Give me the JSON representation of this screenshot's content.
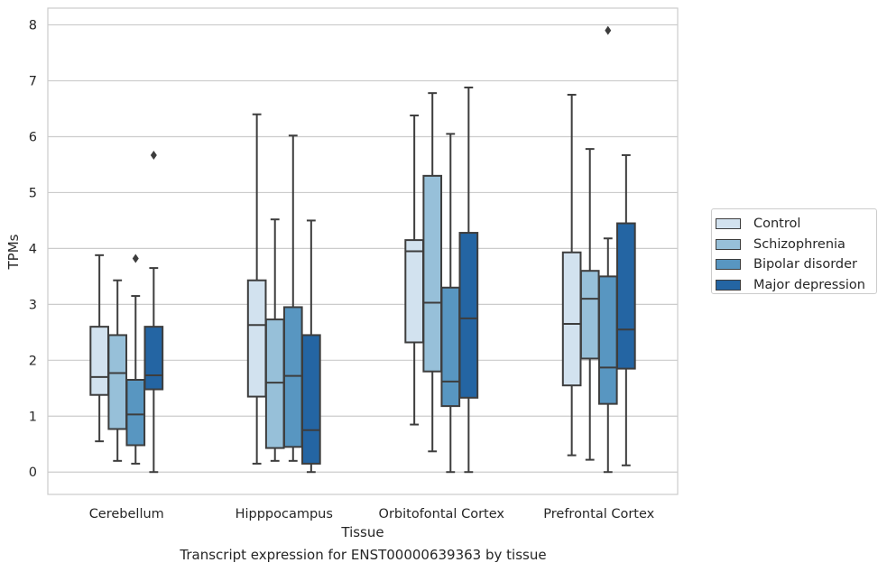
{
  "chart_data": {
    "type": "boxplot",
    "caption": "Transcript expression for ENST00000639363 by tissue",
    "xlabel": "Tissue",
    "ylabel": "TPMs",
    "ylim": [
      -0.4,
      8.3
    ],
    "yticks": [
      0,
      1,
      2,
      3,
      4,
      5,
      6,
      7,
      8
    ],
    "grid": "horizontal",
    "legend_position": "right",
    "categories": [
      "Cerebellum",
      "Hipppocampus",
      "Orbitofontal Cortex",
      "Prefrontal Cortex"
    ],
    "series": [
      {
        "name": "Control",
        "color": "#d2e2ef",
        "boxes": [
          {
            "whislo": 0.55,
            "q1": 1.38,
            "med": 1.7,
            "q3": 2.6,
            "whishi": 3.88,
            "fliers": []
          },
          {
            "whislo": 0.15,
            "q1": 1.35,
            "med": 2.63,
            "q3": 3.43,
            "whishi": 6.4,
            "fliers": []
          },
          {
            "whislo": 0.85,
            "q1": 2.32,
            "med": 3.95,
            "q3": 4.15,
            "whishi": 6.38,
            "fliers": []
          },
          {
            "whislo": 0.3,
            "q1": 1.55,
            "med": 2.65,
            "q3": 3.93,
            "whishi": 6.75,
            "fliers": []
          }
        ]
      },
      {
        "name": "Schizophrenia",
        "color": "#97c0d9",
        "boxes": [
          {
            "whislo": 0.2,
            "q1": 0.77,
            "med": 1.77,
            "q3": 2.45,
            "whishi": 3.43,
            "fliers": []
          },
          {
            "whislo": 0.2,
            "q1": 0.43,
            "med": 1.6,
            "q3": 2.73,
            "whishi": 4.52,
            "fliers": []
          },
          {
            "whislo": 0.37,
            "q1": 1.8,
            "med": 3.03,
            "q3": 5.3,
            "whishi": 6.78,
            "fliers": []
          },
          {
            "whislo": 0.22,
            "q1": 2.03,
            "med": 3.1,
            "q3": 3.6,
            "whishi": 5.78,
            "fliers": []
          }
        ]
      },
      {
        "name": "Bipolar disorder",
        "color": "#5896c1",
        "boxes": [
          {
            "whislo": 0.15,
            "q1": 0.48,
            "med": 1.03,
            "q3": 1.65,
            "whishi": 3.15,
            "fliers": [
              3.82
            ]
          },
          {
            "whislo": 0.2,
            "q1": 0.45,
            "med": 1.72,
            "q3": 2.95,
            "whishi": 6.02,
            "fliers": []
          },
          {
            "whislo": 0.0,
            "q1": 1.18,
            "med": 1.62,
            "q3": 3.3,
            "whishi": 6.05,
            "fliers": []
          },
          {
            "whislo": 0.0,
            "q1": 1.22,
            "med": 1.87,
            "q3": 3.5,
            "whishi": 4.18,
            "fliers": [
              7.9
            ]
          }
        ]
      },
      {
        "name": "Major depression",
        "color": "#2465a3",
        "boxes": [
          {
            "whislo": 0.0,
            "q1": 1.48,
            "med": 1.73,
            "q3": 2.6,
            "whishi": 3.65,
            "fliers": [
              5.67
            ]
          },
          {
            "whislo": 0.0,
            "q1": 0.15,
            "med": 0.75,
            "q3": 2.45,
            "whishi": 4.5,
            "fliers": []
          },
          {
            "whislo": 0.0,
            "q1": 1.33,
            "med": 2.75,
            "q3": 4.28,
            "whishi": 6.88,
            "fliers": []
          },
          {
            "whislo": 0.12,
            "q1": 1.85,
            "med": 2.55,
            "q3": 4.45,
            "whishi": 5.67,
            "fliers": []
          }
        ]
      }
    ]
  }
}
